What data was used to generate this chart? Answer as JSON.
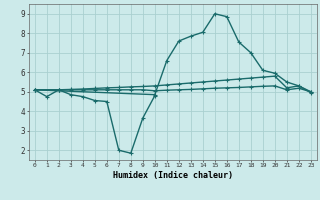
{
  "xlabel": "Humidex (Indice chaleur)",
  "xlim": [
    -0.5,
    23.5
  ],
  "ylim": [
    1.5,
    9.5
  ],
  "yticks": [
    2,
    3,
    4,
    5,
    6,
    7,
    8,
    9
  ],
  "xticks": [
    0,
    1,
    2,
    3,
    4,
    5,
    6,
    7,
    8,
    9,
    10,
    11,
    12,
    13,
    14,
    15,
    16,
    17,
    18,
    19,
    20,
    21,
    22,
    23
  ],
  "bg_color": "#cceaea",
  "grid_color": "#aad0d0",
  "line_color": "#1a6b6b",
  "line_width": 1.0,
  "marker": "+",
  "marker_size": 3.5,
  "line1_x": [
    0,
    1,
    2,
    3,
    4,
    5,
    6,
    7,
    8,
    9,
    10
  ],
  "line1_y": [
    5.1,
    4.75,
    5.1,
    4.85,
    4.75,
    4.55,
    4.5,
    2.0,
    1.85,
    3.65,
    4.8
  ],
  "line2_x": [
    0,
    2,
    3,
    4,
    5,
    6,
    7,
    8,
    9,
    10,
    11,
    12,
    13,
    14,
    15,
    16,
    17,
    18,
    19,
    20,
    21,
    22,
    23
  ],
  "line2_y": [
    5.1,
    5.1,
    5.12,
    5.14,
    5.17,
    5.2,
    5.22,
    5.25,
    5.27,
    5.3,
    5.35,
    5.4,
    5.45,
    5.5,
    5.55,
    5.6,
    5.65,
    5.7,
    5.75,
    5.8,
    5.2,
    5.3,
    5.0
  ],
  "line3_x": [
    0,
    2,
    3,
    4,
    5,
    6,
    7,
    8,
    9,
    10,
    11,
    12,
    13,
    14,
    15,
    16,
    17,
    18,
    19,
    20,
    21,
    22,
    23
  ],
  "line3_y": [
    5.1,
    5.1,
    5.1,
    5.1,
    5.1,
    5.1,
    5.1,
    5.1,
    5.1,
    5.05,
    5.08,
    5.1,
    5.12,
    5.15,
    5.18,
    5.2,
    5.22,
    5.25,
    5.28,
    5.3,
    5.1,
    5.18,
    5.0
  ],
  "line4_x": [
    0,
    10,
    11,
    12,
    13,
    14,
    15,
    16,
    17,
    18,
    19,
    20,
    21,
    22,
    23
  ],
  "line4_y": [
    5.1,
    4.85,
    6.6,
    7.6,
    7.85,
    8.05,
    9.0,
    8.85,
    7.55,
    7.0,
    6.1,
    5.95,
    5.5,
    5.3,
    4.95
  ]
}
